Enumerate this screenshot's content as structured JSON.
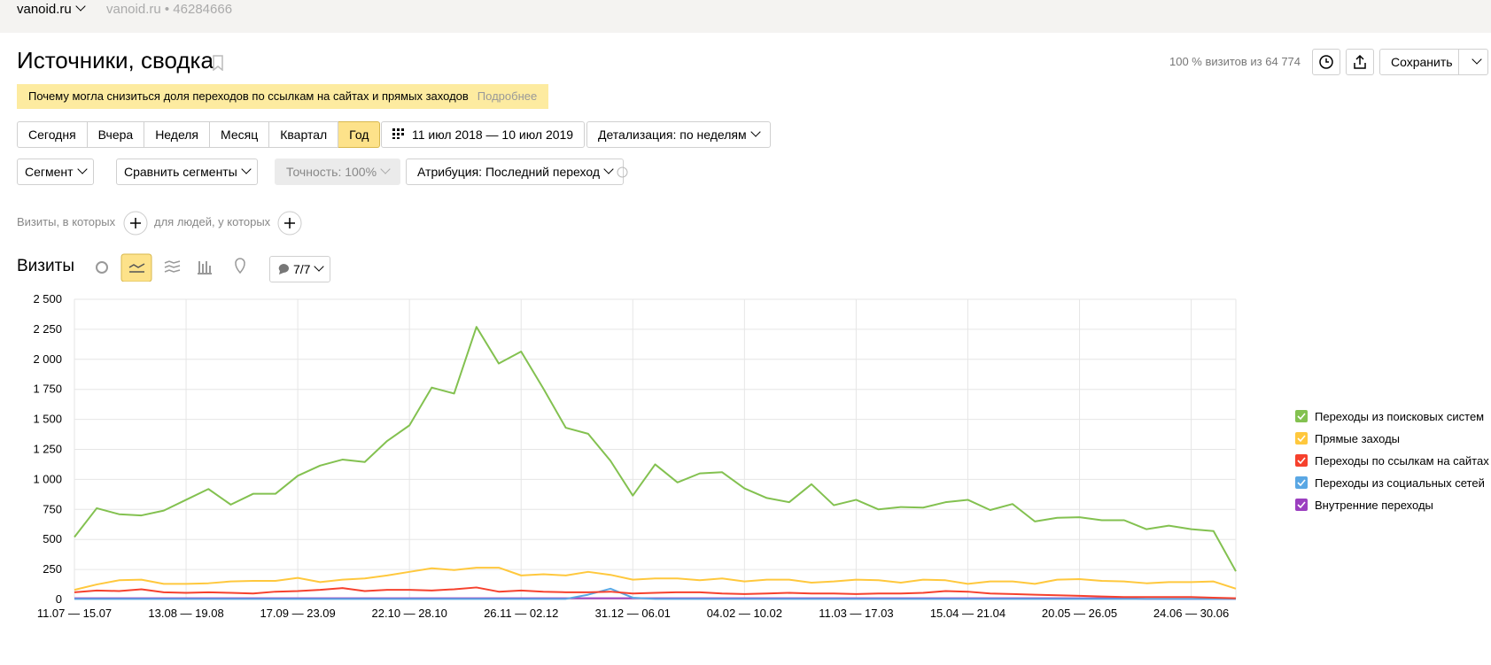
{
  "header": {
    "site": "vanoid.ru",
    "counter": "vanoid.ru • 46284666"
  },
  "title": "Источники, сводка",
  "visits_share": "100 % визитов из 64 774",
  "save_button": "Сохранить",
  "banner": {
    "text": "Почему могла снизиться доля переходов по ссылкам на сайтах и прямых заходов",
    "link": "Подробнее"
  },
  "periods": [
    "Сегодня",
    "Вчера",
    "Неделя",
    "Месяц",
    "Квартал",
    "Год"
  ],
  "date_range": "11 июл 2018 — 10 июл 2019",
  "detail": "Детализация: по неделям",
  "segment": "Сегмент",
  "compare": "Сравнить сегменты",
  "accuracy": "Точность: 100%",
  "attribution": "Атрибуция: Последний переход",
  "filters": {
    "visits": "Визиты, в которых",
    "people": "для людей, у которых"
  },
  "chart_section": {
    "title": "Визиты",
    "series_count": "7/7"
  },
  "chart_data": {
    "type": "line",
    "categories": [
      "11.07 — 15.07",
      null,
      null,
      null,
      null,
      "13.08 — 19.08",
      null,
      null,
      null,
      null,
      "17.09 — 23.09",
      null,
      null,
      null,
      null,
      "22.10 — 28.10",
      null,
      null,
      null,
      null,
      "26.11 — 02.12",
      null,
      null,
      null,
      null,
      "31.12 — 06.01",
      null,
      null,
      null,
      null,
      "04.02 — 10.02",
      null,
      null,
      null,
      null,
      "11.03 — 17.03",
      null,
      null,
      null,
      null,
      "15.04 — 21.04",
      null,
      null,
      null,
      null,
      "20.05 — 26.05",
      null,
      null,
      null,
      null,
      "24.06 — 30.06",
      null,
      null
    ],
    "series": [
      {
        "name": "Переходы из поисковых систем",
        "color": "#83c150",
        "values": [
          520,
          760,
          710,
          700,
          740,
          830,
          920,
          790,
          880,
          880,
          1030,
          1115,
          1165,
          1145,
          1320,
          1450,
          1765,
          1715,
          2270,
          1965,
          2065,
          1755,
          1430,
          1380,
          1155,
          865,
          1125,
          975,
          1050,
          1060,
          925,
          845,
          810,
          960,
          785,
          830,
          750,
          770,
          765,
          810,
          830,
          745,
          795,
          650,
          680,
          685,
          660,
          660,
          585,
          615,
          585,
          570,
          235
        ]
      },
      {
        "name": "Прямые заходы",
        "color": "#ffc83d",
        "values": [
          80,
          125,
          160,
          165,
          130,
          130,
          135,
          150,
          155,
          155,
          180,
          145,
          165,
          175,
          200,
          230,
          260,
          245,
          265,
          265,
          200,
          210,
          200,
          230,
          205,
          165,
          175,
          175,
          160,
          175,
          150,
          165,
          165,
          140,
          150,
          165,
          160,
          140,
          165,
          160,
          130,
          150,
          150,
          130,
          165,
          170,
          155,
          150,
          135,
          145,
          145,
          150,
          90
        ]
      },
      {
        "name": "Переходы по ссылкам на сайтах",
        "color": "#f6412d",
        "values": [
          60,
          75,
          70,
          85,
          60,
          55,
          60,
          55,
          50,
          65,
          70,
          80,
          95,
          70,
          80,
          80,
          75,
          85,
          100,
          65,
          75,
          65,
          60,
          60,
          65,
          50,
          55,
          60,
          60,
          50,
          45,
          50,
          55,
          50,
          50,
          45,
          50,
          50,
          55,
          70,
          65,
          50,
          45,
          40,
          35,
          30,
          25,
          20,
          20,
          20,
          20,
          15,
          10
        ]
      },
      {
        "name": "Переходы из социальных сетей",
        "color": "#5aa7e4",
        "values": [
          5,
          5,
          5,
          5,
          5,
          5,
          5,
          5,
          5,
          5,
          5,
          5,
          5,
          5,
          5,
          5,
          5,
          5,
          5,
          5,
          5,
          5,
          5,
          40,
          90,
          15,
          5,
          5,
          5,
          5,
          5,
          5,
          5,
          5,
          5,
          5,
          5,
          5,
          5,
          5,
          5,
          5,
          5,
          5,
          5,
          5,
          5,
          5,
          5,
          5,
          5,
          5,
          5
        ]
      },
      {
        "name": "Внутренние переходы",
        "color": "#9b3fc0",
        "values": [
          10,
          10,
          10,
          10,
          10,
          10,
          10,
          10,
          10,
          10,
          10,
          10,
          10,
          10,
          10,
          10,
          10,
          10,
          10,
          10,
          10,
          10,
          10,
          10,
          10,
          10,
          10,
          10,
          10,
          10,
          10,
          10,
          10,
          10,
          10,
          10,
          10,
          10,
          10,
          10,
          10,
          10,
          10,
          10,
          10,
          10,
          10,
          10,
          5,
          5,
          5,
          5,
          5
        ]
      }
    ],
    "ylim": [
      0,
      2500
    ],
    "yticks": [
      0,
      250,
      500,
      750,
      {
        "value": 1000,
        "label": "1 000"
      },
      {
        "value": 1250,
        "label": "1 250"
      },
      {
        "value": 1500,
        "label": "1 500"
      },
      {
        "value": 1750,
        "label": "1 750"
      },
      {
        "value": 2000,
        "label": "2 000"
      },
      {
        "value": 2250,
        "label": "2 250"
      },
      {
        "value": 2500,
        "label": "2 500"
      }
    ],
    "grid": true,
    "legend": "right"
  }
}
